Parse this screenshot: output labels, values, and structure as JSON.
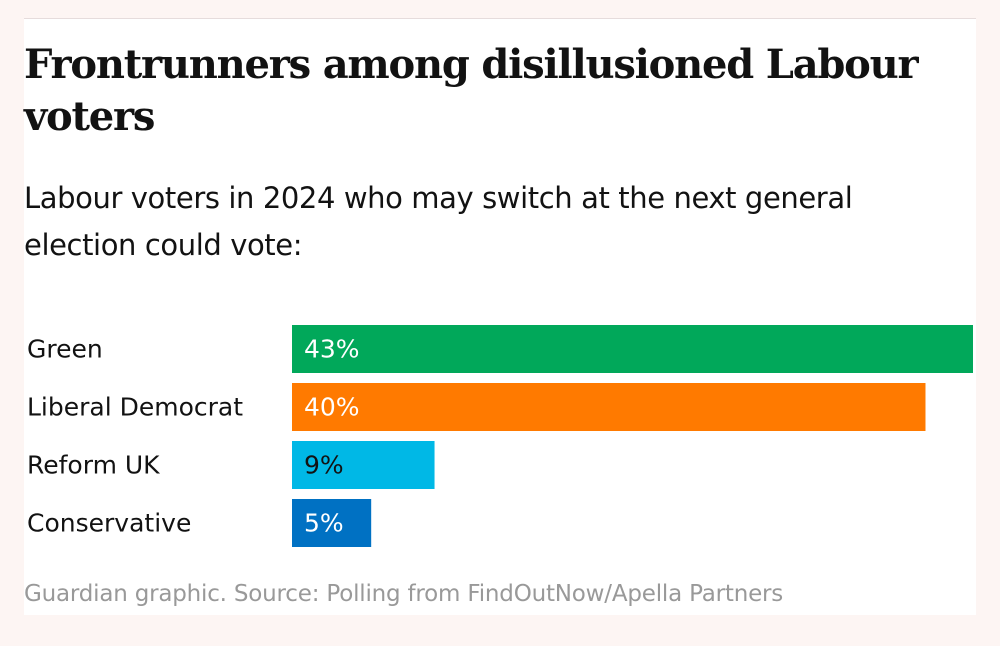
{
  "header": {
    "title": "Frontrunners among disillusioned Labour voters",
    "subtitle": "Labour voters in 2024 who may switch at the next general election could vote:"
  },
  "footer": {
    "source": "Guardian graphic. Source: Polling from FindOutNow/Apella Partners"
  },
  "chart_data": {
    "type": "bar",
    "orientation": "horizontal",
    "categories": [
      "Green",
      "Liberal Democrat",
      "Reform UK",
      "Conservative"
    ],
    "values": [
      43,
      40,
      9,
      5
    ],
    "value_labels": [
      "43%",
      "40%",
      "9%",
      "5%"
    ],
    "colors": [
      "#01a85a",
      "#ff7a00",
      "#00b8e6",
      "#0071c3"
    ],
    "label_colors": [
      "#ffffff",
      "#ffffff",
      "#121212",
      "#ffffff"
    ],
    "xlim": [
      0,
      43
    ],
    "grid": false,
    "legend": "none"
  }
}
